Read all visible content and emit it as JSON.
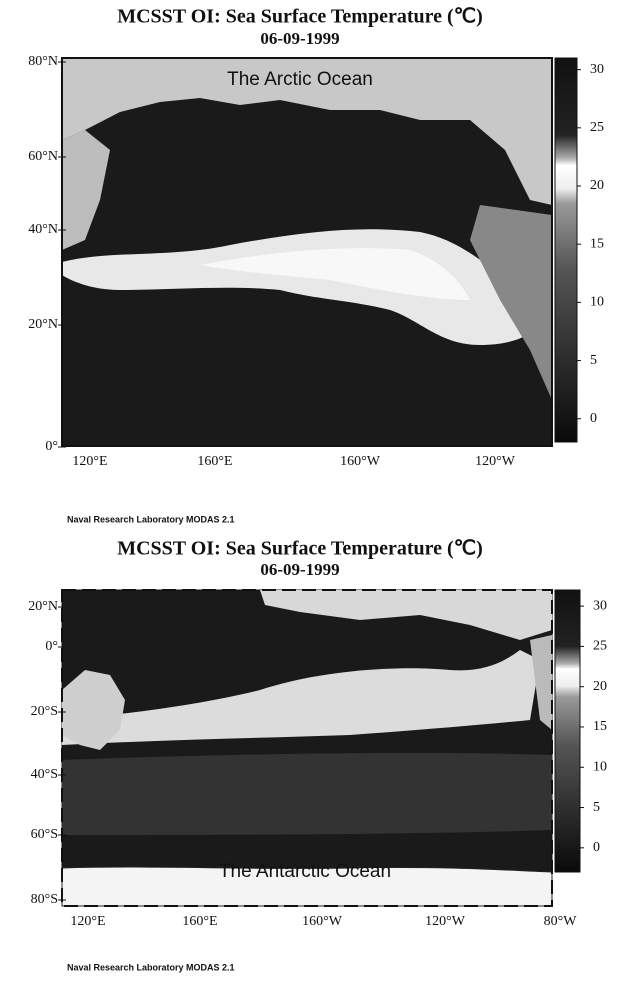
{
  "maps": [
    {
      "title": "MCSST OI:  Sea Surface Temperature (℃)",
      "date": "06-09-1999",
      "region_label": "The Arctic Ocean",
      "lat_labels": [
        "80°N",
        "60°N",
        "40°N",
        "20°N",
        "0°"
      ],
      "lon_labels": [
        "120°E",
        "160°E",
        "160°W",
        "120°W"
      ],
      "colorbar": {
        "lim": [
          -2,
          31
        ],
        "ticks": [
          30,
          25,
          20,
          15,
          10,
          5,
          0
        ]
      },
      "credit": "Naval Research Laboratory  MODAS 2.1"
    },
    {
      "title": "MCSST OI:  Sea Surface Temperature (℃)",
      "date": "06-09-1999",
      "region_label": "The Antarctic Ocean",
      "lat_labels": [
        "20°N",
        "0°",
        "20°S",
        "40°S",
        "60°S",
        "80°S"
      ],
      "lon_labels": [
        "120°E",
        "160°E",
        "160°W",
        "120°W",
        "80°W"
      ],
      "colorbar": {
        "lim": [
          -3,
          32
        ],
        "ticks": [
          30,
          25,
          20,
          15,
          10,
          5,
          0
        ]
      },
      "credit": "Naval Research Laboratory  MODAS 2.1"
    }
  ]
}
